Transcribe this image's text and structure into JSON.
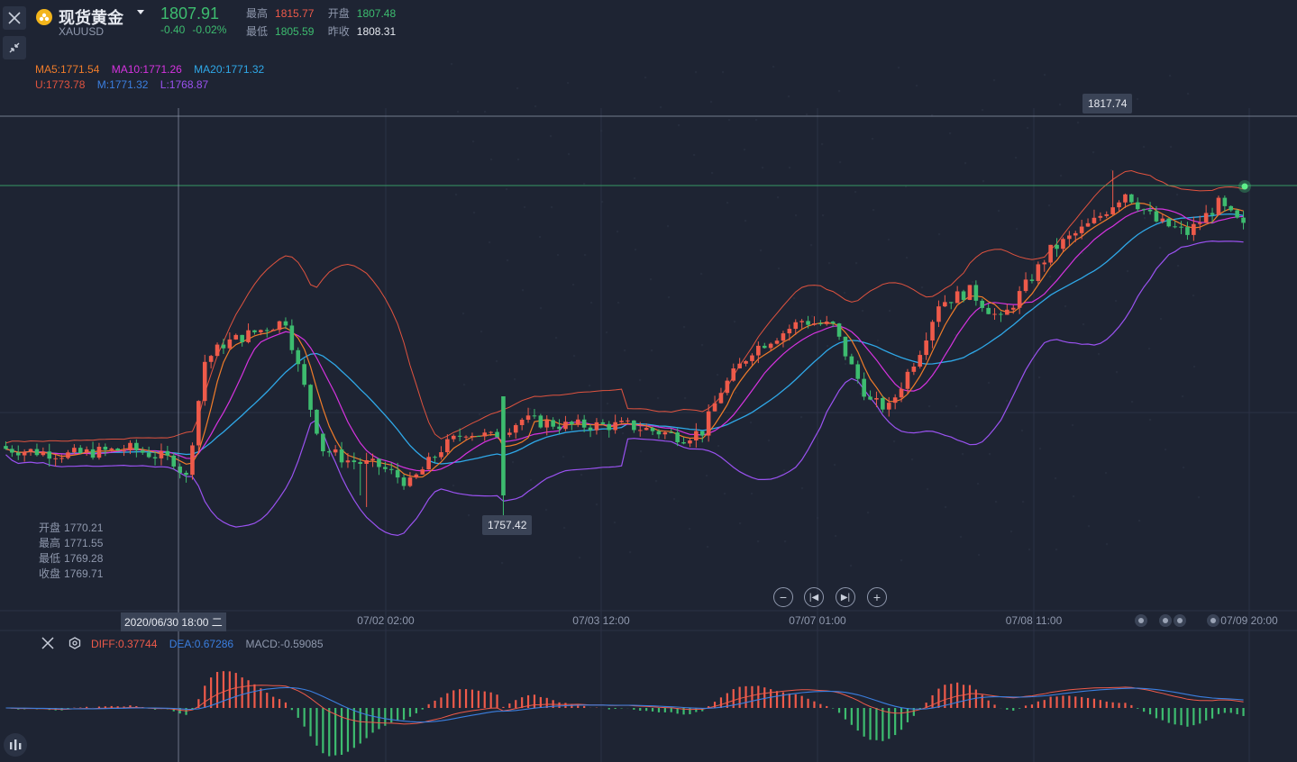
{
  "header": {
    "symbol_name": "现货黄金",
    "symbol_code": "XAUUSD",
    "last_price": "1807.91",
    "change": "-0.40",
    "change_pct": "-0.02%",
    "high_label": "最高",
    "high_value": "1815.77",
    "open_label": "开盘",
    "open_value": "1807.48",
    "low_label": "最低",
    "low_value": "1805.59",
    "prev_close_label": "昨收",
    "prev_close_value": "1808.31"
  },
  "indicators": {
    "ma5": "MA5:1771.54",
    "ma10": "MA10:1771.26",
    "ma20": "MA20:1771.32",
    "boll_u": "U:1773.78",
    "boll_m": "M:1771.32",
    "boll_l": "L:1768.87"
  },
  "crosshair_ohlc": {
    "open_label": "开盘",
    "open": "1770.21",
    "high_label": "最高",
    "high": "1771.55",
    "low_label": "最低",
    "low": "1769.28",
    "close_label": "收盘",
    "close": "1769.71"
  },
  "annotations": {
    "max_label": "1817.74",
    "min_label": "1757.42"
  },
  "xaxis": {
    "crosshair_label": "2020/06/30 18:00 二",
    "ticks": [
      "07/02 02:00",
      "07/03 12:00",
      "07/07 01:00",
      "07/08 11:00",
      "07/09 20:00"
    ]
  },
  "macd_panel": {
    "diff": "DIFF:0.37744",
    "dea": "DEA:0.67286",
    "macd": "MACD:-0.59085"
  },
  "colors": {
    "up": "#ee5a4a",
    "down": "#3dbc6f",
    "ma5": "#f07c2a",
    "ma10": "#d633e0",
    "ma20": "#2fa8e8",
    "boll": "#e0533f",
    "boll_l": "#9a52f0",
    "dea": "#3b7fe0"
  },
  "chart_data": {
    "type": "candlestick",
    "title": "现货黄金 XAUUSD",
    "ylim": [
      1745,
      1830
    ],
    "x_axis_ticks": [
      "07/02 02:00",
      "07/03 12:00",
      "07/07 01:00",
      "07/08 11:00",
      "07/09 20:00"
    ],
    "price_path": [
      [
        0,
        1770
      ],
      [
        10,
        1769
      ],
      [
        20,
        1770
      ],
      [
        27,
        1768
      ],
      [
        29,
        1765
      ],
      [
        32,
        1785
      ],
      [
        35,
        1788
      ],
      [
        45,
        1792
      ],
      [
        47,
        1784
      ],
      [
        51,
        1770
      ],
      [
        55,
        1768
      ],
      [
        60,
        1767
      ],
      [
        65,
        1764
      ],
      [
        70,
        1770
      ],
      [
        74,
        1773
      ],
      [
        78,
        1772
      ],
      [
        83,
        1775
      ],
      [
        90,
        1774
      ],
      [
        100,
        1774
      ],
      [
        109,
        1772
      ],
      [
        112,
        1773
      ],
      [
        115,
        1780
      ],
      [
        120,
        1787
      ],
      [
        125,
        1790
      ],
      [
        128,
        1792
      ],
      [
        133,
        1791
      ],
      [
        136,
        1784
      ],
      [
        139,
        1778
      ],
      [
        142,
        1777
      ],
      [
        147,
        1787
      ],
      [
        150,
        1795
      ],
      [
        155,
        1797
      ],
      [
        160,
        1792
      ],
      [
        168,
        1804
      ],
      [
        175,
        1809
      ],
      [
        180,
        1814
      ],
      [
        185,
        1809
      ],
      [
        190,
        1807
      ],
      [
        195,
        1812
      ],
      [
        199,
        1808
      ]
    ],
    "max_marker": 1817.74,
    "min_marker": 1757.42
  }
}
